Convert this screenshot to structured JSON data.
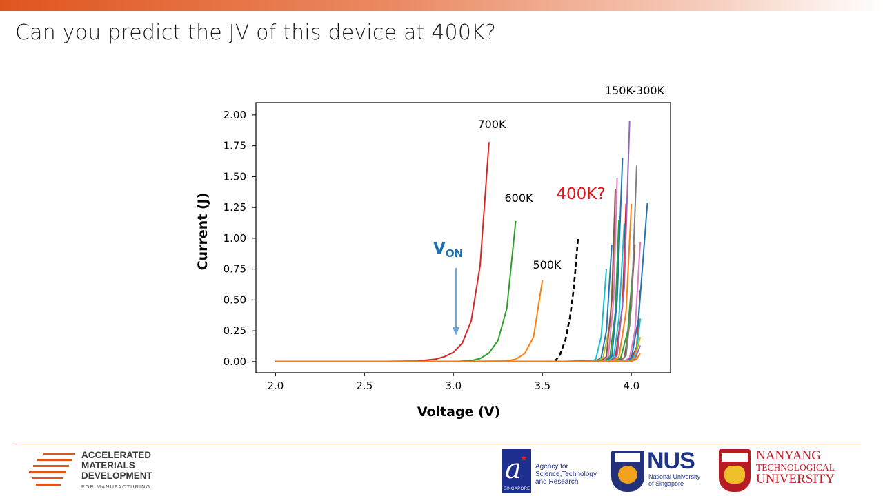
{
  "slide": {
    "title": "Can you predict the JV of this device at 400K?"
  },
  "footer": {
    "amd": {
      "line1": "ACCELERATED",
      "line2": "MATERIALS",
      "line3": "DEVELOPMENT",
      "line4": "FOR MANUFACTURING"
    },
    "astar": {
      "line1": "Agency for",
      "line2": "Science,Technology",
      "line3": "and Research",
      "badge": "SINGAPORE"
    },
    "nus": {
      "letters": "NUS",
      "line1": "National University",
      "line2": "of Singapore"
    },
    "ntu": {
      "line1": "NANYANG",
      "line2": "TECHNOLOGICAL",
      "line3": "UNIVERSITY"
    }
  },
  "chart_data": {
    "type": "line",
    "xlabel": "Voltage (V)",
    "ylabel": "Current (J)",
    "xlim": [
      1.89,
      4.22
    ],
    "ylim": [
      -0.09,
      2.1
    ],
    "xticks": [
      "2.0",
      "2.5",
      "3.0",
      "3.5",
      "4.0"
    ],
    "yticks": [
      "0.00",
      "0.25",
      "0.50",
      "0.75",
      "1.00",
      "1.25",
      "1.50",
      "1.75",
      "2.00"
    ],
    "grid": false,
    "legend": "none",
    "annotations": {
      "range_label": "150K-300K",
      "label_700": "700K",
      "label_600": "600K",
      "label_500": "500K",
      "question_label": "400K?",
      "von_main": "V",
      "von_sub": "ON"
    },
    "colors": {
      "question": "#e8111a",
      "von": "#1f6fb4",
      "arrow": "#6fa8dc"
    },
    "series": [
      {
        "color": "#d62728",
        "x": [
          2.0,
          2.5,
          2.8,
          2.9,
          2.95,
          3.0,
          3.05,
          3.1,
          3.15,
          3.2
        ],
        "y": [
          0.0,
          0.0,
          0.005,
          0.02,
          0.04,
          0.075,
          0.15,
          0.33,
          0.78,
          1.78
        ]
      },
      {
        "color": "#2ca02c",
        "x": [
          2.0,
          2.5,
          3.0,
          3.1,
          3.15,
          3.2,
          3.25,
          3.3,
          3.35
        ],
        "y": [
          0.0,
          0.0,
          0.0,
          0.008,
          0.025,
          0.07,
          0.17,
          0.43,
          1.14
        ]
      },
      {
        "color": "#ff7f0e",
        "x": [
          2.0,
          3.0,
          3.3,
          3.35,
          3.4,
          3.45,
          3.5
        ],
        "y": [
          0.0,
          0.0,
          0.005,
          0.02,
          0.065,
          0.2,
          0.66
        ]
      },
      {
        "color": "#000000",
        "dashed": true,
        "x": [
          3.57,
          3.6,
          3.63,
          3.655,
          3.675,
          3.69,
          3.7
        ],
        "y": [
          0.0,
          0.06,
          0.18,
          0.36,
          0.58,
          0.82,
          1.0
        ]
      },
      {
        "color": "#17becf",
        "x": [
          2.0,
          3.5,
          3.78,
          3.8,
          3.83,
          3.86
        ],
        "y": [
          0,
          0,
          0.005,
          0.02,
          0.2,
          0.75
        ]
      },
      {
        "color": "#1f77b4",
        "x": [
          2.0,
          3.5,
          3.8,
          3.83,
          3.86,
          3.89
        ],
        "y": [
          0,
          0,
          0.005,
          0.03,
          0.25,
          0.95
        ]
      },
      {
        "color": "#bcbd22",
        "x": [
          2.0,
          3.5,
          3.81,
          3.84,
          3.88,
          3.91
        ],
        "y": [
          0,
          0,
          0.005,
          0.03,
          0.3,
          1.1
        ]
      },
      {
        "color": "#8c564b",
        "x": [
          2.0,
          3.5,
          3.83,
          3.86,
          3.89,
          3.91
        ],
        "y": [
          0,
          0,
          0.005,
          0.04,
          0.5,
          1.4
        ]
      },
      {
        "color": "#e377c2",
        "x": [
          2.0,
          3.5,
          3.84,
          3.87,
          3.9,
          3.92
        ],
        "y": [
          0,
          0,
          0.005,
          0.04,
          0.5,
          1.49
        ]
      },
      {
        "color": "#2ca02c",
        "x": [
          2.0,
          3.5,
          3.85,
          3.88,
          3.91,
          3.93
        ],
        "y": [
          0,
          0,
          0.005,
          0.04,
          0.4,
          1.15
        ]
      },
      {
        "color": "#1f77b4",
        "x": [
          2.0,
          3.5,
          3.86,
          3.89,
          3.92,
          3.95
        ],
        "y": [
          0,
          0,
          0.005,
          0.04,
          0.5,
          1.65
        ]
      },
      {
        "color": "#17becf",
        "x": [
          2.0,
          3.5,
          3.87,
          3.9,
          3.93,
          3.96
        ],
        "y": [
          0,
          0,
          0.005,
          0.03,
          0.35,
          1.12
        ]
      },
      {
        "color": "#d62728",
        "x": [
          2.0,
          3.5,
          3.88,
          3.91,
          3.95,
          3.97
        ],
        "y": [
          0,
          0,
          0.005,
          0.03,
          0.45,
          1.28
        ]
      },
      {
        "color": "#9467bd",
        "x": [
          2.0,
          3.5,
          3.89,
          3.92,
          3.96,
          3.99
        ],
        "y": [
          0,
          0,
          0.005,
          0.05,
          0.6,
          1.95
        ]
      },
      {
        "color": "#ff7f0e",
        "x": [
          2.0,
          3.5,
          3.9,
          3.93,
          3.97,
          4.0
        ],
        "y": [
          0,
          0,
          0.005,
          0.04,
          0.4,
          1.28
        ]
      },
      {
        "color": "#2ca02c",
        "x": [
          2.0,
          3.5,
          3.91,
          3.94,
          3.98,
          4.01
        ],
        "y": [
          0,
          0,
          0.005,
          0.03,
          0.25,
          0.78
        ]
      },
      {
        "color": "#8c564b",
        "x": [
          2.0,
          3.5,
          3.92,
          3.96,
          3.99,
          4.02
        ],
        "y": [
          0,
          0,
          0.005,
          0.03,
          0.3,
          0.95
        ]
      },
      {
        "color": "#7f7f7f",
        "x": [
          2.0,
          3.5,
          3.94,
          3.97,
          4.0,
          4.03
        ],
        "y": [
          0,
          0,
          0.005,
          0.05,
          0.45,
          1.59
        ]
      },
      {
        "color": "#e377c2",
        "x": [
          2.0,
          3.5,
          3.96,
          3.99,
          4.02,
          4.05
        ],
        "y": [
          0,
          0,
          0.005,
          0.03,
          0.25,
          0.97
        ]
      },
      {
        "color": "#d62728",
        "x": [
          2.0,
          3.5,
          3.97,
          4.0,
          4.03,
          4.05
        ],
        "y": [
          0,
          0,
          0.005,
          0.02,
          0.12,
          0.58
        ]
      },
      {
        "color": "#1f77b4",
        "x": [
          2.0,
          3.5,
          3.97,
          4.0,
          4.04,
          4.09
        ],
        "y": [
          0,
          0,
          0.005,
          0.03,
          0.35,
          1.29
        ]
      },
      {
        "color": "#17becf",
        "x": [
          2.0,
          3.5,
          3.98,
          4.01,
          4.03,
          4.05
        ],
        "y": [
          0,
          0,
          0.005,
          0.02,
          0.1,
          0.35
        ]
      },
      {
        "color": "#bcbd22",
        "x": [
          2.0,
          3.5,
          3.99,
          4.02,
          4.05
        ],
        "y": [
          0,
          0,
          0.005,
          0.03,
          0.2
        ]
      },
      {
        "color": "#9467bd",
        "x": [
          2.0,
          3.5,
          3.99,
          4.02,
          4.05
        ],
        "y": [
          0,
          0,
          0.003,
          0.02,
          0.13
        ]
      },
      {
        "color": "#ff7f0e",
        "x": [
          2.0,
          3.5,
          4.0,
          4.03,
          4.05
        ],
        "y": [
          0,
          0,
          0.003,
          0.02,
          0.07
        ]
      }
    ]
  }
}
